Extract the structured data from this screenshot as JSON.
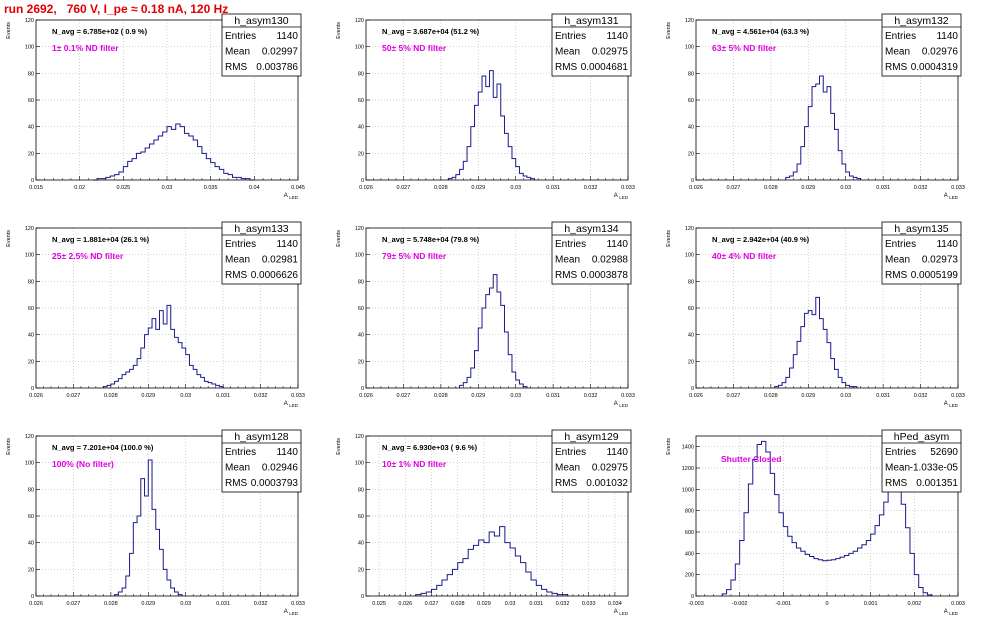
{
  "page_title": "run 2692,   760 V, I_pe ≈ 0.18 nA, 120 Hz",
  "colors": {
    "hist": "#1a1a8c",
    "annotation": "#e000e0",
    "title": "#e00000",
    "grid": "#bdbdbd"
  },
  "chart_data": [
    {
      "type": "histogram",
      "name": "h_asym130",
      "stats": {
        "entries_label": "Entries",
        "entries": "1140",
        "mean_label": "Mean",
        "mean": "0.02997",
        "rms_label": "RMS",
        "rms": "0.003786"
      },
      "navg": "N_avg = 6.785e+02 ( 0.9 %)",
      "filter": "1± 0.1% ND filter",
      "xlabel": "A_LED",
      "ylabel": "Events",
      "xlim": [
        0.015,
        0.045
      ],
      "ylim": [
        0,
        120
      ],
      "xticks": [
        0.015,
        0.02,
        0.025,
        0.03,
        0.035,
        0.04,
        0.045
      ],
      "xtick_labels": [
        "0.015",
        "0.02",
        "0.025",
        "0.03",
        "0.035",
        "0.04",
        "0.045"
      ],
      "yticks": [
        0,
        20,
        40,
        60,
        80,
        100,
        120
      ],
      "ytick_labels": [
        "0",
        "20",
        "40",
        "60",
        "80",
        "100",
        "120"
      ],
      "x_start": 0.0215,
      "bin_width": 0.0005,
      "values": [
        0,
        1,
        1,
        2,
        3,
        4,
        6,
        10,
        14,
        16,
        20,
        21,
        24,
        27,
        30,
        33,
        36,
        40,
        38,
        42,
        40,
        35,
        33,
        30,
        25,
        20,
        16,
        13,
        10,
        8,
        5,
        4,
        2,
        2,
        1,
        1,
        0
      ]
    },
    {
      "type": "histogram",
      "name": "h_asym131",
      "stats": {
        "entries_label": "Entries",
        "entries": "1140",
        "mean_label": "Mean",
        "mean": "0.02975",
        "rms_label": "RMS",
        "rms": "0.0004681"
      },
      "navg": "N_avg = 3.687e+04 (51.2 %)",
      "filter": "50± 5% ND filter",
      "xlabel": "A_LED",
      "ylabel": "Events",
      "xlim": [
        0.026,
        0.033
      ],
      "ylim": [
        0,
        120
      ],
      "xticks": [
        0.026,
        0.027,
        0.028,
        0.029,
        0.03,
        0.031,
        0.032,
        0.033
      ],
      "xtick_labels": [
        "0.026",
        "0.027",
        "0.028",
        "0.029",
        "0.03",
        "0.031",
        "0.032",
        "0.033"
      ],
      "yticks": [
        0,
        20,
        40,
        60,
        80,
        100,
        120
      ],
      "ytick_labels": [
        "0",
        "20",
        "40",
        "60",
        "80",
        "100",
        "120"
      ],
      "x_start": 0.0282,
      "bin_width": 0.0001,
      "values": [
        1,
        2,
        4,
        8,
        14,
        25,
        40,
        56,
        66,
        78,
        70,
        82,
        62,
        72,
        48,
        35,
        25,
        16,
        10,
        5,
        3,
        2,
        1
      ]
    },
    {
      "type": "histogram",
      "name": "h_asym132",
      "stats": {
        "entries_label": "Entries",
        "entries": "1140",
        "mean_label": "Mean",
        "mean": "0.02976",
        "rms_label": "RMS",
        "rms": "0.0004319"
      },
      "navg": "N_avg = 4.561e+04 (63.3 %)",
      "filter": "63± 5% ND filter",
      "xlabel": "A_LED",
      "ylabel": "Events",
      "xlim": [
        0.026,
        0.033
      ],
      "ylim": [
        0,
        120
      ],
      "xticks": [
        0.026,
        0.027,
        0.028,
        0.029,
        0.03,
        0.031,
        0.032,
        0.033
      ],
      "xtick_labels": [
        "0.026",
        "0.027",
        "0.028",
        "0.029",
        "0.03",
        "0.031",
        "0.032",
        "0.033"
      ],
      "yticks": [
        0,
        20,
        40,
        60,
        80,
        100,
        120
      ],
      "ytick_labels": [
        "0",
        "20",
        "40",
        "60",
        "80",
        "100",
        "120"
      ],
      "x_start": 0.0284,
      "bin_width": 0.0001,
      "values": [
        2,
        3,
        6,
        12,
        25,
        40,
        55,
        70,
        72,
        78,
        66,
        70,
        50,
        38,
        22,
        12,
        6,
        3,
        2,
        1
      ]
    },
    {
      "type": "histogram",
      "name": "h_asym133",
      "stats": {
        "entries_label": "Entries",
        "entries": "1140",
        "mean_label": "Mean",
        "mean": "0.02981",
        "rms_label": "RMS",
        "rms": "0.0006626"
      },
      "navg": "N_avg = 1.881e+04 (26.1 %)",
      "filter": "25± 2.5% ND filter",
      "xlabel": "A_LED",
      "ylabel": "Events",
      "xlim": [
        0.026,
        0.033
      ],
      "ylim": [
        0,
        120
      ],
      "xticks": [
        0.026,
        0.027,
        0.028,
        0.029,
        0.03,
        0.031,
        0.032,
        0.033
      ],
      "xtick_labels": [
        "0.026",
        "0.027",
        "0.028",
        "0.029",
        "0.03",
        "0.031",
        "0.032",
        "0.033"
      ],
      "yticks": [
        0,
        20,
        40,
        60,
        80,
        100,
        120
      ],
      "ytick_labels": [
        "0",
        "20",
        "40",
        "60",
        "80",
        "100",
        "120"
      ],
      "x_start": 0.0278,
      "bin_width": 0.0001,
      "values": [
        1,
        2,
        3,
        5,
        7,
        10,
        12,
        14,
        17,
        22,
        30,
        40,
        45,
        52,
        44,
        58,
        48,
        62,
        44,
        38,
        34,
        30,
        25,
        17,
        14,
        10,
        8,
        5,
        4,
        3,
        2,
        1
      ]
    },
    {
      "type": "histogram",
      "name": "h_asym134",
      "stats": {
        "entries_label": "Entries",
        "entries": "1140",
        "mean_label": "Mean",
        "mean": "0.02988",
        "rms_label": "RMS",
        "rms": "0.0003878"
      },
      "navg": "N_avg = 5.748e+04 (79.8 %)",
      "filter": "79± 5% ND filter",
      "xlabel": "A_LED",
      "ylabel": "Events",
      "xlim": [
        0.026,
        0.033
      ],
      "ylim": [
        0,
        120
      ],
      "xticks": [
        0.026,
        0.027,
        0.028,
        0.029,
        0.03,
        0.031,
        0.032,
        0.033
      ],
      "xtick_labels": [
        "0.026",
        "0.027",
        "0.028",
        "0.029",
        "0.03",
        "0.031",
        "0.032",
        "0.033"
      ],
      "yticks": [
        0,
        20,
        40,
        60,
        80,
        100,
        120
      ],
      "ytick_labels": [
        "0",
        "20",
        "40",
        "60",
        "80",
        "100",
        "120"
      ],
      "x_start": 0.0285,
      "bin_width": 0.0001,
      "values": [
        2,
        4,
        8,
        15,
        28,
        45,
        60,
        70,
        75,
        85,
        72,
        62,
        42,
        25,
        12,
        6,
        3,
        1
      ]
    },
    {
      "type": "histogram",
      "name": "h_asym135",
      "stats": {
        "entries_label": "Entries",
        "entries": "1140",
        "mean_label": "Mean",
        "mean": "0.02973",
        "rms_label": "RMS",
        "rms": "0.0005199"
      },
      "navg": "N_avg = 2.942e+04 (40.9 %)",
      "filter": "40± 4% ND filter",
      "xlabel": "A_LED",
      "ylabel": "Events",
      "xlim": [
        0.026,
        0.033
      ],
      "ylim": [
        0,
        120
      ],
      "xticks": [
        0.026,
        0.027,
        0.028,
        0.029,
        0.03,
        0.031,
        0.032,
        0.033
      ],
      "xtick_labels": [
        "0.026",
        "0.027",
        "0.028",
        "0.029",
        "0.03",
        "0.031",
        "0.032",
        "0.033"
      ],
      "yticks": [
        0,
        20,
        40,
        60,
        80,
        100,
        120
      ],
      "ytick_labels": [
        "0",
        "20",
        "40",
        "60",
        "80",
        "100",
        "120"
      ],
      "x_start": 0.0281,
      "bin_width": 0.0001,
      "values": [
        1,
        2,
        4,
        8,
        15,
        25,
        35,
        46,
        56,
        58,
        55,
        68,
        52,
        44,
        34,
        22,
        14,
        8,
        4,
        2,
        1,
        1
      ]
    },
    {
      "type": "histogram",
      "name": "h_asym128",
      "stats": {
        "entries_label": "Entries",
        "entries": "1140",
        "mean_label": "Mean",
        "mean": "0.02946",
        "rms_label": "RMS",
        "rms": "0.0003793"
      },
      "navg": "N_avg = 7.201e+04 (100.0 %)",
      "filter": "100% (No filter)",
      "xlabel": "A_LED",
      "ylabel": "Events",
      "xlim": [
        0.026,
        0.033
      ],
      "ylim": [
        0,
        120
      ],
      "xticks": [
        0.026,
        0.027,
        0.028,
        0.029,
        0.03,
        0.031,
        0.032,
        0.033
      ],
      "xtick_labels": [
        "0.026",
        "0.027",
        "0.028",
        "0.029",
        "0.03",
        "0.031",
        "0.032",
        "0.033"
      ],
      "yticks": [
        0,
        20,
        40,
        60,
        80,
        100,
        120
      ],
      "ytick_labels": [
        "0",
        "20",
        "40",
        "60",
        "80",
        "100",
        "120"
      ],
      "x_start": 0.0281,
      "bin_width": 0.0001,
      "values": [
        1,
        3,
        6,
        15,
        32,
        55,
        60,
        88,
        75,
        102,
        65,
        50,
        35,
        20,
        12,
        6,
        3,
        1
      ]
    },
    {
      "type": "histogram",
      "name": "h_asym129",
      "stats": {
        "entries_label": "Entries",
        "entries": "1140",
        "mean_label": "Mean",
        "mean": "0.02975",
        "rms_label": "RMS",
        "rms": "0.001032"
      },
      "navg": "N_avg = 6.930e+03 ( 9.6 %)",
      "filter": "10± 1% ND filter",
      "xlabel": "A_LED",
      "ylabel": "Events",
      "xlim": [
        0.0245,
        0.0345
      ],
      "ylim": [
        0,
        120
      ],
      "xticks": [
        0.025,
        0.026,
        0.027,
        0.028,
        0.029,
        0.03,
        0.031,
        0.032,
        0.033,
        0.034
      ],
      "xtick_labels": [
        "0.025",
        "0.026",
        "0.027",
        "0.028",
        "0.029",
        "0.03",
        "0.031",
        "0.032",
        "0.033",
        "0.034"
      ],
      "yticks": [
        0,
        20,
        40,
        60,
        80,
        100,
        120
      ],
      "ytick_labels": [
        "0",
        "20",
        "40",
        "60",
        "80",
        "100",
        "120"
      ],
      "x_start": 0.0264,
      "bin_width": 0.0002,
      "values": [
        1,
        2,
        3,
        5,
        8,
        12,
        16,
        20,
        25,
        28,
        35,
        38,
        42,
        40,
        48,
        45,
        52,
        40,
        36,
        30,
        25,
        18,
        12,
        8,
        5,
        3,
        2,
        1,
        1
      ]
    },
    {
      "type": "histogram",
      "name": "hPed_asym",
      "stats": {
        "entries_label": "Entries",
        "entries": "52690",
        "mean_label": "Mean",
        "mean": "-1.033e-05",
        "rms_label": "RMS",
        "rms": "0.001351"
      },
      "annotation": "Shutter Closed",
      "xlabel": "A_LED",
      "ylabel": "Events",
      "xlim": [
        -0.003,
        0.003
      ],
      "ylim": [
        0,
        1500
      ],
      "xticks": [
        -0.003,
        -0.002,
        -0.001,
        0,
        0.001,
        0.002,
        0.003
      ],
      "xtick_labels": [
        "-0.003",
        "-0.002",
        "-0.001",
        "0",
        "0.001",
        "0.002",
        "0.003"
      ],
      "yticks": [
        0,
        200,
        400,
        600,
        800,
        1000,
        1200,
        1400
      ],
      "ytick_labels": [
        "0",
        "200",
        "400",
        "600",
        "800",
        "1000",
        "1200",
        "1400"
      ],
      "x_start": -0.0024,
      "bin_width": 0.0001,
      "values": [
        20,
        60,
        150,
        300,
        520,
        780,
        1050,
        1280,
        1420,
        1450,
        1350,
        1150,
        950,
        780,
        650,
        560,
        500,
        450,
        420,
        390,
        370,
        350,
        340,
        330,
        335,
        340,
        350,
        365,
        380,
        400,
        420,
        450,
        480,
        520,
        580,
        660,
        760,
        880,
        1000,
        1080,
        1020,
        860,
        640,
        400,
        200,
        80,
        30,
        10
      ]
    }
  ]
}
